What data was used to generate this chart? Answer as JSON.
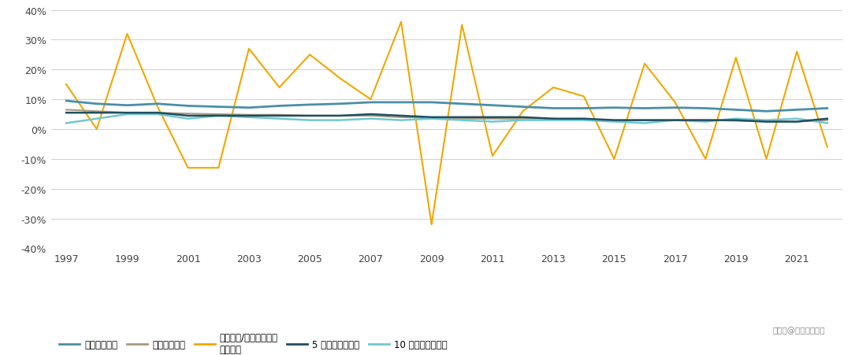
{
  "years": [
    1997,
    1998,
    1999,
    2000,
    2001,
    2002,
    2003,
    2004,
    2005,
    2006,
    2007,
    2008,
    2009,
    2010,
    2011,
    2012,
    2013,
    2014,
    2015,
    2016,
    2017,
    2018,
    2019,
    2020,
    2021,
    2022
  ],
  "dividend_yield": [
    9.5,
    8.5,
    8.0,
    8.5,
    7.8,
    7.5,
    7.2,
    7.8,
    8.2,
    8.5,
    9.0,
    9.0,
    9.0,
    8.5,
    8.0,
    7.5,
    7.0,
    7.0,
    7.2,
    7.0,
    7.2,
    7.0,
    6.5,
    6.0,
    6.5,
    7.0
  ],
  "cpi": [
    6.5,
    6.0,
    5.5,
    5.5,
    5.2,
    5.0,
    4.8,
    4.8,
    4.5,
    4.5,
    4.5,
    4.0,
    3.8,
    3.5,
    3.5,
    3.5,
    3.5,
    3.2,
    3.0,
    3.0,
    3.0,
    3.0,
    2.8,
    2.5,
    2.5,
    3.0
  ],
  "tsx_return": [
    15.0,
    0.0,
    32.0,
    7.5,
    -13.0,
    -13.0,
    27.0,
    14.0,
    25.0,
    17.0,
    10.0,
    36.0,
    -32.0,
    35.0,
    -9.0,
    6.0,
    14.0,
    11.0,
    -10.0,
    22.0,
    9.0,
    -10.0,
    24.0,
    -10.0,
    26.0,
    -6.0
  ],
  "bond_5yr": [
    5.5,
    5.5,
    5.5,
    5.5,
    4.5,
    4.5,
    4.5,
    4.5,
    4.5,
    4.5,
    5.0,
    4.5,
    4.0,
    4.0,
    4.0,
    4.0,
    3.5,
    3.5,
    3.0,
    3.0,
    3.0,
    3.0,
    3.0,
    2.5,
    2.5,
    3.5
  ],
  "bond_10yr": [
    2.0,
    3.5,
    5.0,
    5.0,
    3.5,
    4.5,
    4.0,
    3.5,
    3.0,
    3.0,
    3.5,
    3.0,
    3.5,
    3.0,
    2.5,
    3.0,
    3.0,
    3.0,
    2.5,
    2.0,
    3.0,
    2.5,
    3.5,
    3.0,
    3.5,
    2.0
  ],
  "series_colors": {
    "dividend_yield": "#4A8FA8",
    "cpi": "#A89880",
    "tsx_return": "#F0A800",
    "bond_5yr": "#1E5060",
    "bond_10yr": "#70C8D0"
  },
  "series_labels": {
    "dividend_yield": "分红比例利率",
    "cpi": "消费价格指数",
    "tsx_return": "标准普尔/多伦多证交所\n总回报率",
    "bond_5yr": "5 年期担保投资证",
    "bond_10yr": "10 年期加拿大政府"
  },
  "ylim": [
    -40,
    40
  ],
  "yticks": [
    -40,
    -30,
    -20,
    -10,
    0,
    10,
    20,
    30,
    40
  ],
  "xtick_years": [
    1997,
    1999,
    2001,
    2003,
    2005,
    2007,
    2009,
    2011,
    2013,
    2015,
    2017,
    2019,
    2021
  ],
  "bg_color": "#FFFFFF",
  "grid_color": "#C8C8C8",
  "watermark": "搜狐号@香港友城保险"
}
